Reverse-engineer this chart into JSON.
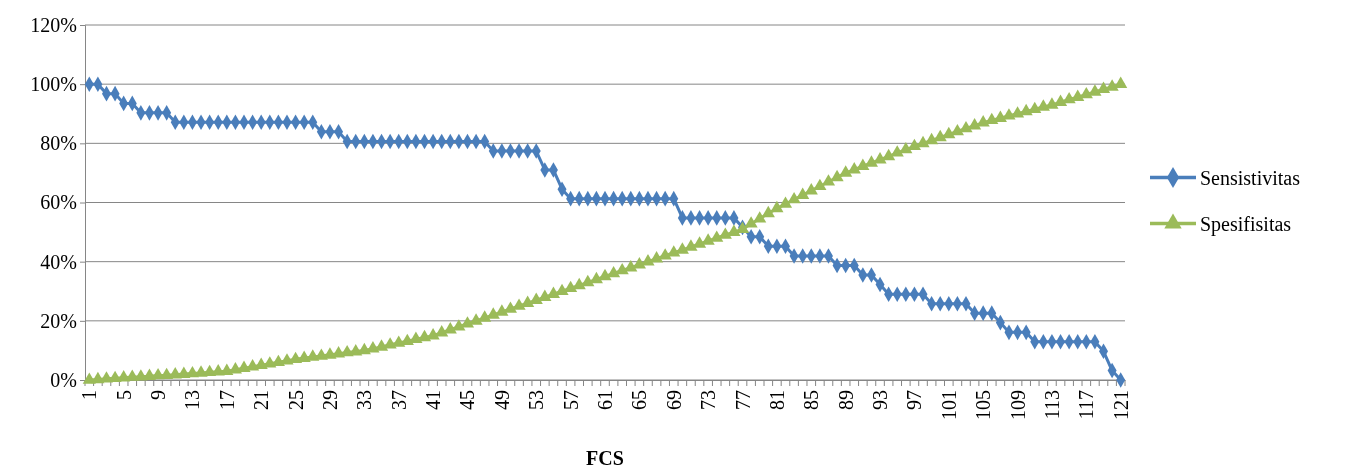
{
  "chart_data": {
    "type": "line",
    "xlabel": "FCS",
    "categories": [
      "1",
      null,
      null,
      null,
      "5",
      null,
      null,
      null,
      "9",
      null,
      null,
      null,
      "13",
      null,
      null,
      null,
      "17",
      null,
      null,
      null,
      "21",
      null,
      null,
      null,
      "25",
      null,
      null,
      null,
      "29",
      null,
      null,
      null,
      "33",
      null,
      null,
      null,
      "37",
      null,
      null,
      null,
      "41",
      null,
      null,
      null,
      "45",
      null,
      null,
      null,
      "49",
      null,
      null,
      null,
      "53",
      null,
      null,
      null,
      "57",
      null,
      null,
      null,
      "61",
      null,
      null,
      null,
      "65",
      null,
      null,
      null,
      "69",
      null,
      null,
      null,
      "73",
      null,
      null,
      null,
      "77",
      null,
      null,
      null,
      "81",
      null,
      null,
      null,
      "85",
      null,
      null,
      null,
      "89",
      null,
      null,
      null,
      "93",
      null,
      null,
      null,
      "97",
      null,
      null,
      null,
      "101",
      null,
      null,
      null,
      "105",
      null,
      null,
      null,
      "109",
      null,
      null,
      null,
      "113",
      null,
      null,
      null,
      "117",
      null,
      null,
      null,
      "121"
    ],
    "series": [
      {
        "name": "Sensistivitas",
        "color": "#4a7ebb",
        "values": [
          100,
          100,
          96.8,
          96.8,
          93.5,
          93.5,
          90.3,
          90.3,
          90.3,
          90.3,
          87.1,
          87.1,
          87.1,
          87.1,
          87.1,
          87.1,
          87.1,
          87.1,
          87.1,
          87.1,
          87.1,
          87.1,
          87.1,
          87.1,
          87.1,
          87.1,
          87.1,
          83.9,
          83.9,
          83.9,
          80.6,
          80.6,
          80.6,
          80.6,
          80.6,
          80.6,
          80.6,
          80.6,
          80.6,
          80.6,
          80.6,
          80.6,
          80.6,
          80.6,
          80.6,
          80.6,
          80.6,
          77.4,
          77.4,
          77.4,
          77.4,
          77.4,
          77.4,
          71,
          71,
          64.5,
          61.3,
          61.3,
          61.3,
          61.3,
          61.3,
          61.3,
          61.3,
          61.3,
          61.3,
          61.3,
          61.3,
          61.3,
          61.3,
          54.8,
          54.8,
          54.8,
          54.8,
          54.8,
          54.8,
          54.8,
          51.6,
          48.4,
          48.4,
          45.2,
          45.2,
          45.2,
          41.9,
          41.9,
          41.9,
          41.9,
          41.9,
          38.7,
          38.7,
          38.7,
          35.5,
          35.5,
          32.3,
          29,
          29,
          29,
          29,
          29,
          25.8,
          25.8,
          25.8,
          25.8,
          25.8,
          22.6,
          22.6,
          22.6,
          19.4,
          16.1,
          16.1,
          16.1,
          12.9,
          12.9,
          12.9,
          12.9,
          12.9,
          12.9,
          12.9,
          12.9,
          9.7,
          3.2,
          0
        ]
      },
      {
        "name": "Spesifisitas",
        "color": "#9bbb59",
        "marker": "triangle",
        "values": [
          0,
          0.2,
          0.4,
          0.6,
          0.8,
          1,
          1.1,
          1.3,
          1.5,
          1.6,
          1.8,
          2,
          2.2,
          2.4,
          2.6,
          2.8,
          3,
          3.5,
          4,
          4.5,
          5,
          5.5,
          6,
          6.5,
          7,
          7.4,
          7.8,
          8.1,
          8.5,
          8.9,
          9.3,
          9.6,
          10,
          10.6,
          11.2,
          11.9,
          12.5,
          13.1,
          13.8,
          14.4,
          15,
          16,
          17,
          18,
          19,
          20,
          21,
          22,
          23,
          24,
          25,
          26,
          27,
          28,
          29,
          30,
          31,
          32,
          33,
          34,
          35,
          36,
          37,
          38,
          39,
          40,
          41,
          42,
          43,
          44,
          45,
          46,
          47,
          48,
          49,
          50,
          51,
          52.8,
          54.5,
          56.3,
          58,
          59.5,
          61,
          62.5,
          64,
          65.5,
          67,
          68.5,
          70,
          71.1,
          72.3,
          73.4,
          74.5,
          75.6,
          76.8,
          77.9,
          79,
          80,
          81,
          82,
          83,
          84,
          85,
          86,
          87,
          87.8,
          88.5,
          89.3,
          90,
          90.8,
          91.5,
          92.3,
          93,
          93.9,
          94.8,
          95.6,
          96.5,
          97.4,
          98.3,
          99.1,
          100
        ]
      }
    ],
    "ylim": [
      0,
      120
    ],
    "yticks": [
      {
        "value": 0,
        "label": "0%"
      },
      {
        "value": 20,
        "label": "20%"
      },
      {
        "value": 40,
        "label": "40%"
      },
      {
        "value": 60,
        "label": "60%"
      },
      {
        "value": 80,
        "label": "80%"
      },
      {
        "value": 100,
        "label": "100%"
      },
      {
        "value": 120,
        "label": "120%"
      }
    ],
    "grid": "y",
    "legend": "right",
    "line_style": "solid",
    "marker": "diamond"
  }
}
